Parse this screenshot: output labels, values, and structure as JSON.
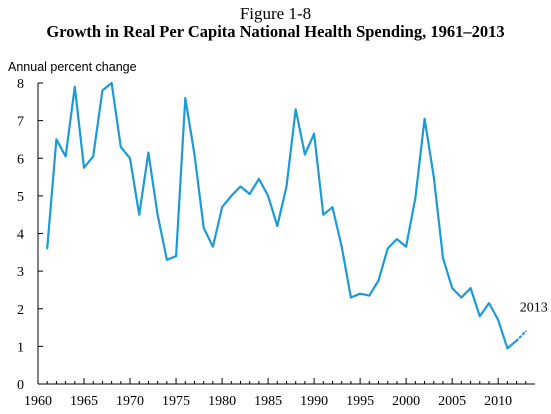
{
  "chart_data": {
    "type": "line",
    "figure_label": "Figure 1-8",
    "title": "Growth in Real Per Capita National Health Spending, 1961–2013",
    "ylabel": "Annual percent change",
    "xlabel": "",
    "xlim": [
      1960,
      2014
    ],
    "ylim": [
      0,
      8
    ],
    "x_ticks": [
      1960,
      1965,
      1970,
      1975,
      1980,
      1985,
      1990,
      1995,
      2000,
      2005,
      2010
    ],
    "y_ticks": [
      0,
      1,
      2,
      3,
      4,
      5,
      6,
      7,
      8
    ],
    "grid": false,
    "color": "#1c9ad6",
    "series": [
      {
        "x": [
          1961,
          1962,
          1963,
          1964,
          1965,
          1966,
          1967,
          1968,
          1969,
          1970,
          1971,
          1972,
          1973,
          1974,
          1975,
          1976,
          1977,
          1978,
          1979,
          1980,
          1981,
          1982,
          1983,
          1984,
          1985,
          1986,
          1987,
          1988,
          1989,
          1990,
          1991,
          1992,
          1993,
          1994,
          1995,
          1996,
          1997,
          1998,
          1999,
          2000,
          2001,
          2002,
          2003,
          2004,
          2005,
          2006,
          2007,
          2008,
          2009,
          2010,
          2011,
          2012
        ],
        "values": [
          3.6,
          6.5,
          6.05,
          7.9,
          5.75,
          6.05,
          7.8,
          8.0,
          6.3,
          6.0,
          4.5,
          6.15,
          4.5,
          3.3,
          3.4,
          7.6,
          6.1,
          4.15,
          3.65,
          4.7,
          5.0,
          5.25,
          5.05,
          5.45,
          5.0,
          4.2,
          5.25,
          7.3,
          6.1,
          6.65,
          4.5,
          4.7,
          3.65,
          2.3,
          2.4,
          2.35,
          2.75,
          3.6,
          3.85,
          3.65,
          4.95,
          7.05,
          5.5,
          3.35,
          2.55,
          2.3,
          2.55,
          1.8,
          2.15,
          1.7,
          0.95,
          1.15
        ]
      },
      {
        "style": "dotted",
        "x": [
          2012,
          2013
        ],
        "values": [
          1.15,
          1.4
        ]
      }
    ],
    "annotations": [
      {
        "text": "2013",
        "x": 2013,
        "y": 1.4
      }
    ]
  }
}
